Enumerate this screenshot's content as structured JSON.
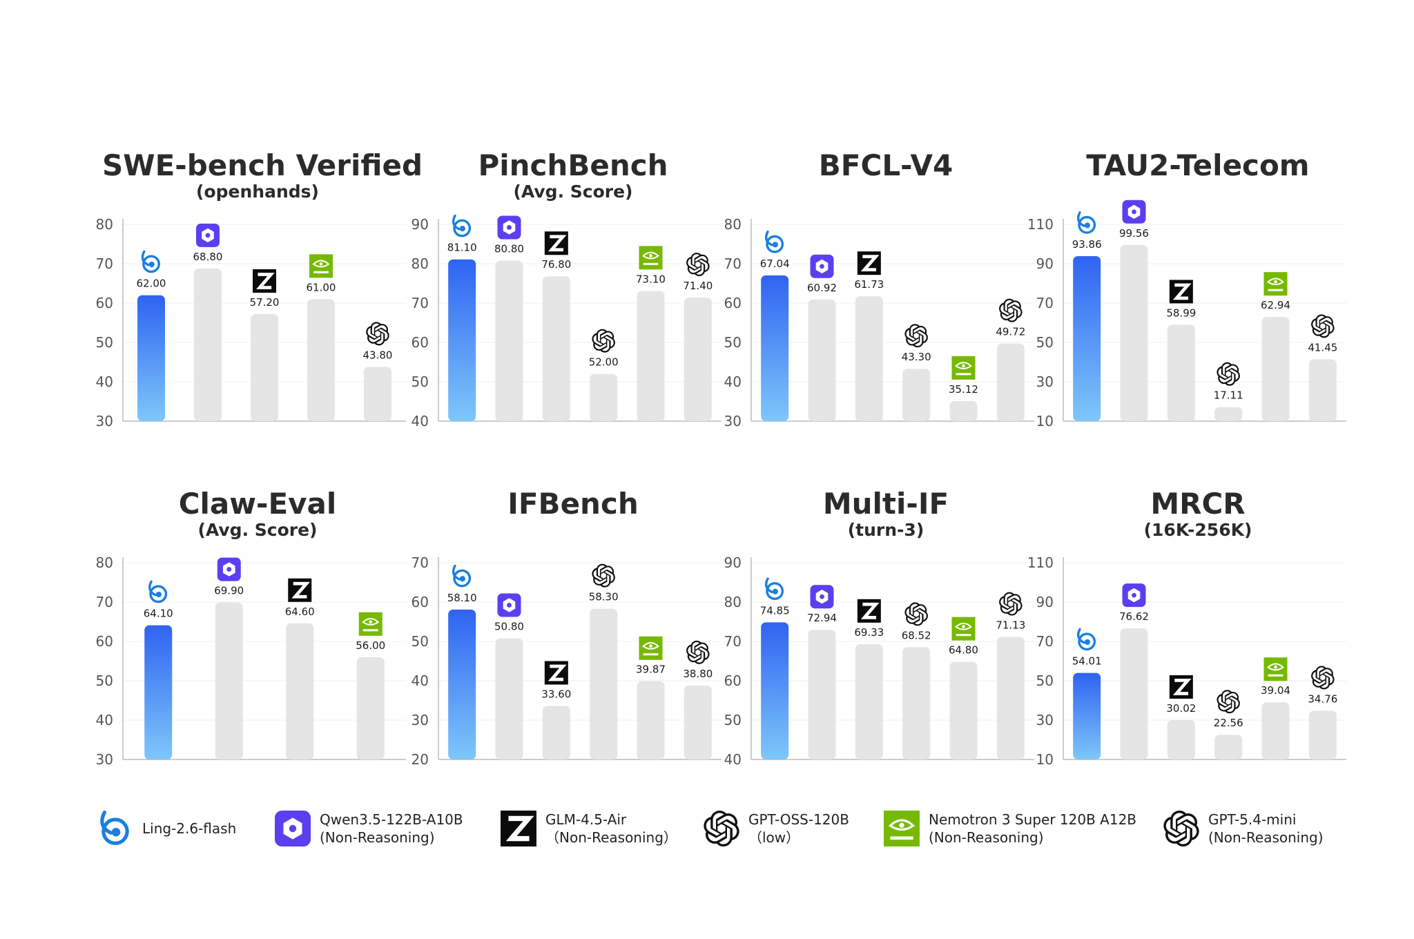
{
  "models": [
    {
      "key": "ling",
      "name": "Ling-2.6-flash",
      "name_line2": "",
      "icon": "ling-logo-icon"
    },
    {
      "key": "qwen",
      "name": "Qwen3.5-122B-A10B",
      "name_line2": "(Non-Reasoning)",
      "icon": "qwen-logo-icon"
    },
    {
      "key": "glm",
      "name": "GLM-4.5-Air",
      "name_line2": "（Non-Reasoning）",
      "icon": "zhipu-z-logo-icon"
    },
    {
      "key": "gptoss",
      "name": "GPT-OSS-120B",
      "name_line2": "（low）",
      "icon": "openai-logo-icon"
    },
    {
      "key": "nemotron",
      "name": "Nemotron 3 Super 120B A12B",
      "name_line2": "(Non-Reasoning)",
      "icon": "nvidia-logo-icon"
    },
    {
      "key": "gptmini",
      "name": "GPT-5.4-mini",
      "name_line2": "(Non-Reasoning)",
      "icon": "openai-logo-icon"
    }
  ],
  "colors": {
    "highlight_top": "#2f63f2",
    "highlight_bottom": "#7ec7fa",
    "bar_gray": "#e5e5e5",
    "qwen_purple": "#5b3ff0",
    "nvidia_green": "#76b900",
    "axis": "#bbbbbb",
    "grid": "#efefef"
  },
  "chart_data": [
    {
      "type": "bar",
      "title": "SWE-bench Verified",
      "subtitle": "(openhands)",
      "ylim": [
        30,
        80
      ],
      "yticks": [
        30,
        40,
        50,
        60,
        70,
        80
      ],
      "grid": true,
      "bars": [
        {
          "model": "ling",
          "value": 62.0,
          "label": "62.00"
        },
        {
          "model": "qwen",
          "value": 68.8,
          "label": "68.80"
        },
        {
          "model": "glm",
          "value": 57.2,
          "label": "57.20"
        },
        {
          "model": "nemotron",
          "value": 61.0,
          "label": "61.00"
        },
        {
          "model": "gptmini",
          "value": 43.8,
          "label": "43.80"
        }
      ]
    },
    {
      "type": "bar",
      "title": "PinchBench",
      "subtitle": "(Avg. Score)",
      "ylim": [
        40,
        90
      ],
      "yticks": [
        40,
        50,
        60,
        70,
        80,
        90
      ],
      "grid": true,
      "bars": [
        {
          "model": "ling",
          "value": 81.1,
          "label": "81.10"
        },
        {
          "model": "qwen",
          "value": 80.8,
          "label": "80.80"
        },
        {
          "model": "glm",
          "value": 76.8,
          "label": "76.80"
        },
        {
          "model": "gptoss",
          "value": 52.0,
          "label": "52.00"
        },
        {
          "model": "nemotron",
          "value": 73.1,
          "label": "73.10"
        },
        {
          "model": "gptmini",
          "value": 71.4,
          "label": "71.40"
        }
      ]
    },
    {
      "type": "bar",
      "title": "BFCL-V4",
      "subtitle": "",
      "ylim": [
        30,
        80
      ],
      "yticks": [
        30,
        40,
        50,
        60,
        70,
        80
      ],
      "grid": true,
      "bars": [
        {
          "model": "ling",
          "value": 67.04,
          "label": "67.04"
        },
        {
          "model": "qwen",
          "value": 60.92,
          "label": "60.92"
        },
        {
          "model": "glm",
          "value": 61.73,
          "label": "61.73"
        },
        {
          "model": "gptoss",
          "value": 43.3,
          "label": "43.30"
        },
        {
          "model": "nemotron",
          "value": 35.12,
          "label": "35.12"
        },
        {
          "model": "gptmini",
          "value": 49.72,
          "label": "49.72"
        }
      ]
    },
    {
      "type": "bar",
      "title": "TAU2-Telecom",
      "subtitle": "",
      "ylim": [
        10,
        110
      ],
      "yticks": [
        10,
        30,
        50,
        70,
        90,
        110
      ],
      "grid": true,
      "bars": [
        {
          "model": "ling",
          "value": 93.86,
          "label": "93.86"
        },
        {
          "model": "qwen",
          "value": 99.56,
          "label": "99.56"
        },
        {
          "model": "glm",
          "value": 58.99,
          "label": "58.99"
        },
        {
          "model": "gptoss",
          "value": 17.11,
          "label": "17.11"
        },
        {
          "model": "nemotron",
          "value": 62.94,
          "label": "62.94"
        },
        {
          "model": "gptmini",
          "value": 41.45,
          "label": "41.45"
        }
      ]
    },
    {
      "type": "bar",
      "title": "Claw-Eval",
      "subtitle": "(Avg. Score)",
      "ylim": [
        30,
        80
      ],
      "yticks": [
        30,
        40,
        50,
        60,
        70,
        80
      ],
      "grid": true,
      "bars": [
        {
          "model": "ling",
          "value": 64.1,
          "label": "64.10"
        },
        {
          "model": "qwen",
          "value": 69.9,
          "label": "69.90"
        },
        {
          "model": "glm",
          "value": 64.6,
          "label": "64.60"
        },
        {
          "model": "nemotron",
          "value": 56.0,
          "label": "56.00"
        }
      ]
    },
    {
      "type": "bar",
      "title": "IFBench",
      "subtitle": "",
      "ylim": [
        20,
        70
      ],
      "yticks": [
        20,
        30,
        40,
        50,
        60,
        70
      ],
      "grid": true,
      "bars": [
        {
          "model": "ling",
          "value": 58.1,
          "label": "58.10"
        },
        {
          "model": "qwen",
          "value": 50.8,
          "label": "50.80"
        },
        {
          "model": "glm",
          "value": 33.6,
          "label": "33.60"
        },
        {
          "model": "gptoss",
          "value": 58.3,
          "label": "58.30"
        },
        {
          "model": "nemotron",
          "value": 39.87,
          "label": "39.87"
        },
        {
          "model": "gptmini",
          "value": 38.8,
          "label": "38.80"
        }
      ]
    },
    {
      "type": "bar",
      "title": "Multi-IF",
      "subtitle": "(turn-3)",
      "ylim": [
        40,
        90
      ],
      "yticks": [
        40,
        50,
        60,
        70,
        80,
        90
      ],
      "grid": true,
      "bars": [
        {
          "model": "ling",
          "value": 74.85,
          "label": "74.85"
        },
        {
          "model": "qwen",
          "value": 72.94,
          "label": "72.94"
        },
        {
          "model": "glm",
          "value": 69.33,
          "label": "69.33"
        },
        {
          "model": "gptoss",
          "value": 68.52,
          "label": "68.52"
        },
        {
          "model": "nemotron",
          "value": 64.8,
          "label": "64.80"
        },
        {
          "model": "gptmini",
          "value": 71.13,
          "label": "71.13"
        }
      ]
    },
    {
      "type": "bar",
      "title": "MRCR",
      "subtitle": "(16K-256K)",
      "ylim": [
        10,
        110
      ],
      "yticks": [
        10,
        30,
        50,
        70,
        90,
        110
      ],
      "grid": true,
      "bars": [
        {
          "model": "ling",
          "value": 54.01,
          "label": "54.01"
        },
        {
          "model": "qwen",
          "value": 76.62,
          "label": "76.62"
        },
        {
          "model": "glm",
          "value": 30.02,
          "label": "30.02"
        },
        {
          "model": "gptoss",
          "value": 22.56,
          "label": "22.56"
        },
        {
          "model": "nemotron",
          "value": 39.04,
          "label": "39.04"
        },
        {
          "model": "gptmini",
          "value": 34.76,
          "label": "34.76"
        }
      ]
    }
  ]
}
